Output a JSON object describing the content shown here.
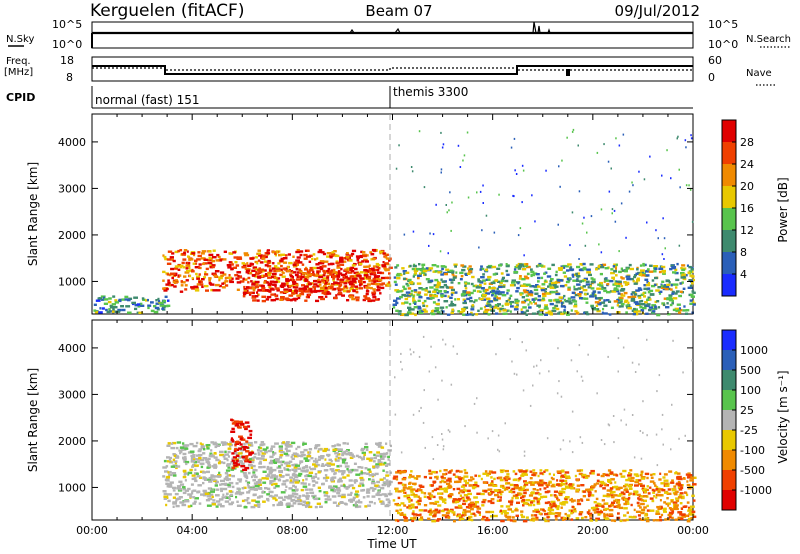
{
  "header": {
    "station": "Kerguelen (fitACF)",
    "beam": "Beam 07",
    "date": "09/Jul/2012"
  },
  "strip_nsky": {
    "left_label": "N.Sky",
    "left_ticks": [
      "10^5",
      "10^0"
    ],
    "right_label": "N.Search",
    "right_ticks": [
      "10^5",
      "10^0"
    ]
  },
  "strip_freq": {
    "left_label_1": "Freq.",
    "left_label_2": "[MHz]",
    "left_ticks": [
      "18",
      "8"
    ],
    "right_label": "Nave",
    "right_ticks": [
      "60",
      "0"
    ]
  },
  "strip_cpid": {
    "label": "CPID",
    "segments": [
      {
        "text": "normal (fast) 151",
        "start_hour": 0
      },
      {
        "text": "themis 3300",
        "start_hour": 12
      }
    ]
  },
  "colors": {
    "power": [
      "#1a2cff",
      "#2a5fb8",
      "#3e8a6e",
      "#58c44c",
      "#e8c800",
      "#f08a00",
      "#f04000",
      "#e00000"
    ],
    "velocity": [
      "#1a2cff",
      "#2a5fb8",
      "#3e8a6e",
      "#58c44c",
      "#b4b4b4",
      "#e8c800",
      "#f08a00",
      "#f04000",
      "#e00000"
    ]
  },
  "chart_data": [
    {
      "type": "heatmap",
      "name": "power",
      "ylabel": "Slant Range [km]",
      "yticks": [
        "1000",
        "2000",
        "3000",
        "4000"
      ],
      "ylim": [
        300,
        4600
      ],
      "xlim": [
        0,
        24
      ],
      "xticks": [],
      "colorbar": {
        "label": "Power [dB]",
        "ticks": [
          "4",
          "8",
          "12",
          "16",
          "20",
          "24",
          "28"
        ],
        "range": [
          0,
          30
        ]
      },
      "echo_bands": [
        {
          "x": [
            2.8,
            11.9
          ],
          "range_km": [
            800,
            1700
          ],
          "value": 26
        },
        {
          "x": [
            6.0,
            11.5
          ],
          "range_km": [
            600,
            1300
          ],
          "value": 28
        },
        {
          "x": [
            12.0,
            24.0
          ],
          "range_km": [
            300,
            1400
          ],
          "value": 14
        },
        {
          "x": [
            0,
            3.0
          ],
          "range_km": [
            350,
            700
          ],
          "value": 8
        }
      ]
    },
    {
      "type": "heatmap",
      "name": "velocity",
      "ylabel": "Slant Range [km]",
      "yticks": [
        "1000",
        "2000",
        "3000",
        "4000"
      ],
      "ylim": [
        300,
        4600
      ],
      "xlim": [
        0,
        24
      ],
      "xticks": [
        "00:00",
        "04:00",
        "08:00",
        "12:00",
        "16:00",
        "20:00",
        "00:00"
      ],
      "xlabel": "Time UT",
      "colorbar": {
        "label": "Velocity [m s⁻¹]",
        "ticks": [
          "1000",
          "500",
          "100",
          "25",
          "-25",
          "-100",
          "-500",
          "-1000"
        ]
      },
      "echo_bands": [
        {
          "x": [
            2.8,
            11.9
          ],
          "range_km": [
            600,
            2000
          ],
          "value": 0
        },
        {
          "x": [
            12.0,
            24.0
          ],
          "range_km": [
            300,
            1400
          ],
          "value": -100
        },
        {
          "x": [
            5.5,
            6.3
          ],
          "range_km": [
            1400,
            2500
          ],
          "value": -1000
        }
      ]
    }
  ]
}
